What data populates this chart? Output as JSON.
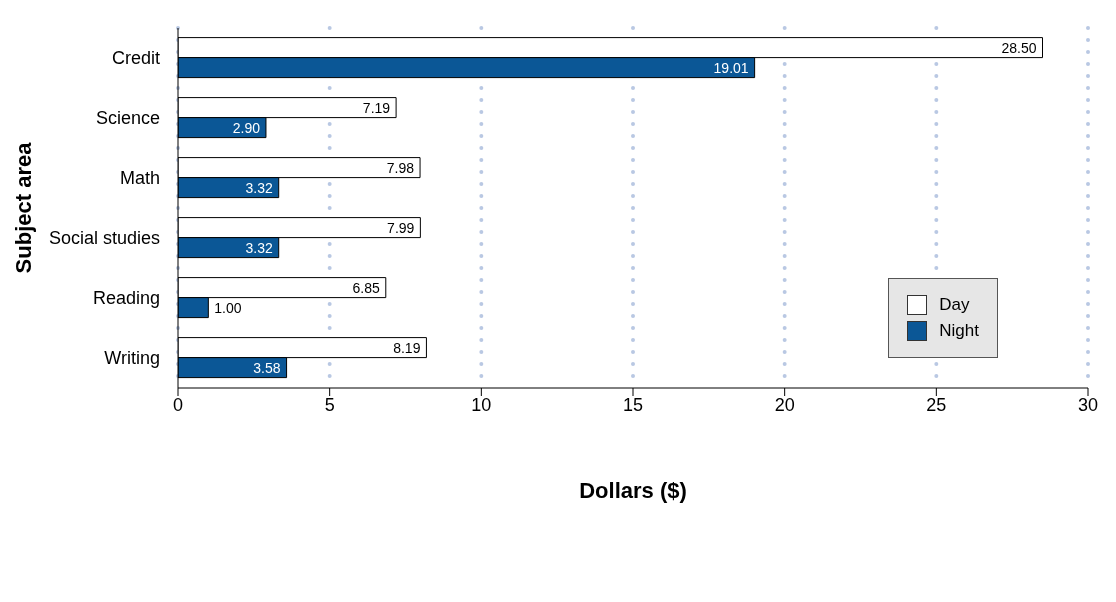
{
  "chart_data": {
    "type": "bar",
    "orientation": "horizontal",
    "xlabel": "Dollars ($)",
    "ylabel": "Subject area",
    "categories": [
      "Credit",
      "Science",
      "Math",
      "Social studies",
      "Reading",
      "Writing"
    ],
    "series": [
      {
        "name": "Day",
        "color": "#ffffff",
        "values": [
          28.5,
          7.19,
          7.98,
          7.99,
          6.85,
          8.19
        ],
        "value_labels": [
          "28.50",
          "7.19",
          "7.98",
          "7.99",
          "6.85",
          "8.19"
        ]
      },
      {
        "name": "Night",
        "color": "#0b5796",
        "values": [
          19.01,
          2.9,
          3.32,
          3.32,
          1.0,
          3.58
        ],
        "value_labels": [
          "19.01",
          "2.90",
          "3.32",
          "3.32",
          "1.00",
          "3.58"
        ]
      }
    ],
    "xlim": [
      0,
      30
    ],
    "xticks": [
      0,
      5,
      10,
      15,
      20,
      25,
      30
    ],
    "grid": "x",
    "legend": "right"
  }
}
